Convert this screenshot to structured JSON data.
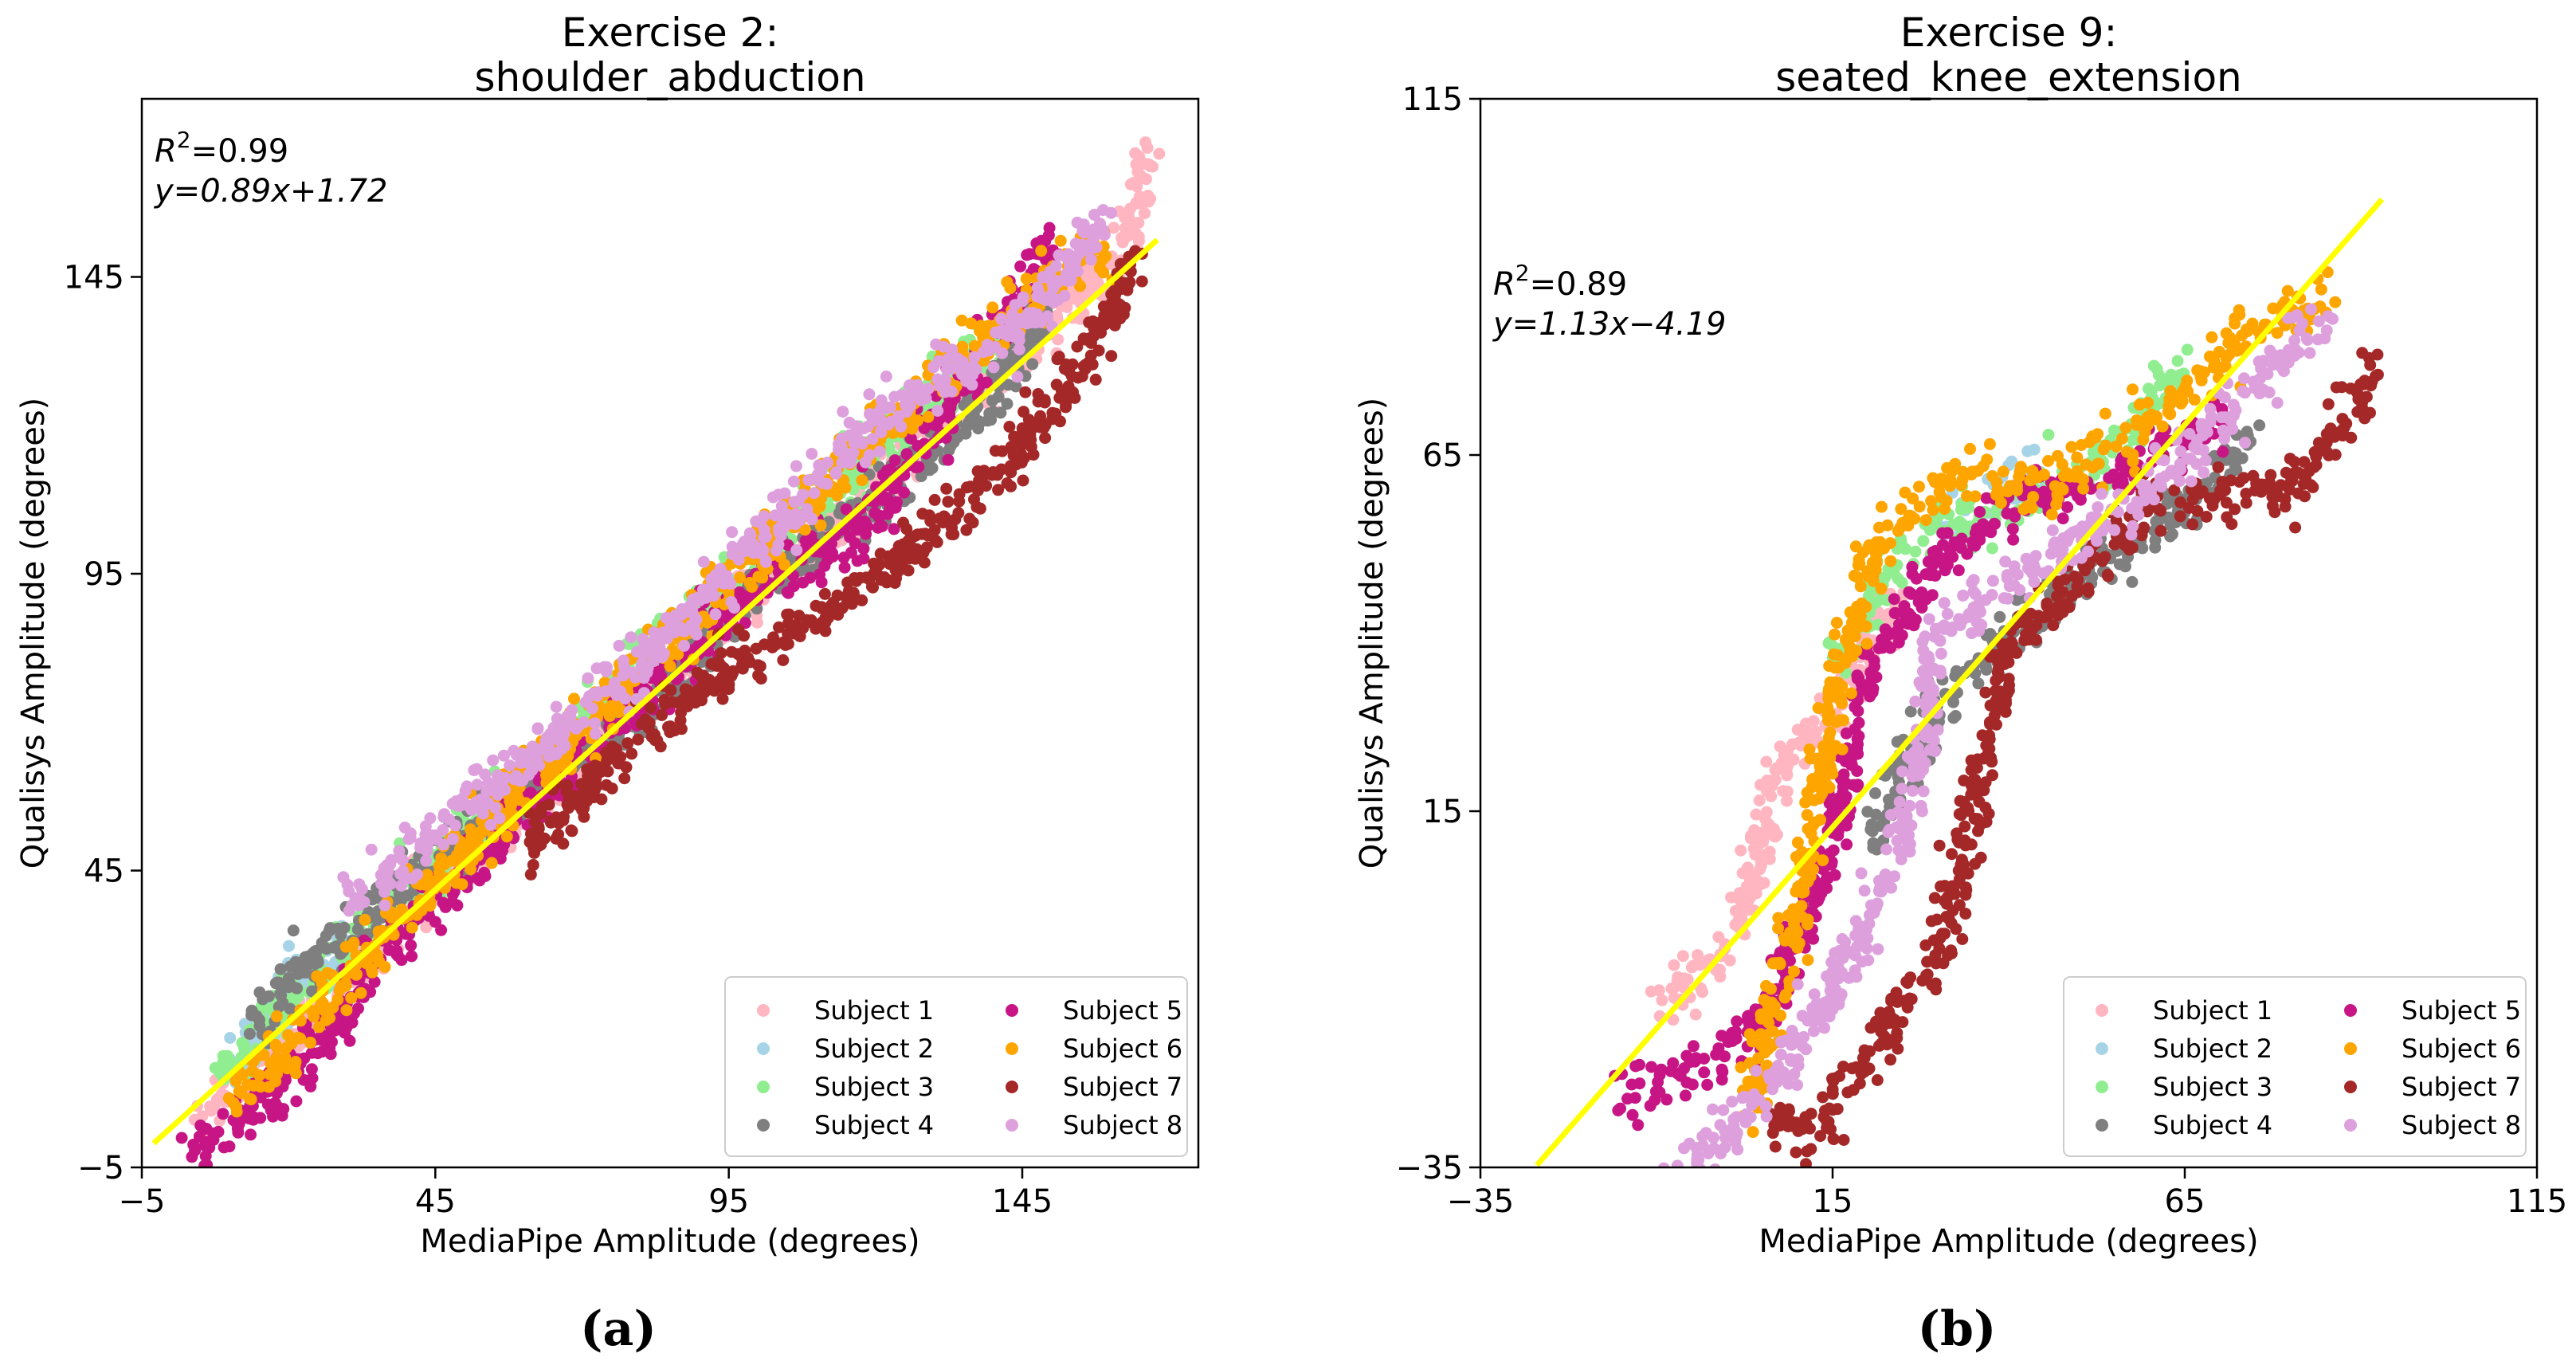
{
  "chart_data": [
    {
      "type": "scatter",
      "panel_label": "(a)",
      "title": "Exercise 2:",
      "subtitle": "shoulder_abduction",
      "xlabel": "MediaPipe Amplitude (degrees)",
      "ylabel": "Qualisys Amplitude (degrees)",
      "xlim": [
        -5,
        175
      ],
      "ylim": [
        -5,
        175
      ],
      "xticks": [
        -5,
        45,
        95,
        145
      ],
      "yticks": [
        -5,
        45,
        95,
        145
      ],
      "xtick_labels": [
        "−5",
        "45",
        "95",
        "145"
      ],
      "ytick_labels": [
        "−5",
        "45",
        "95",
        "145"
      ],
      "annotation_r2": {
        "base": "R",
        "sup": "2",
        "value": "=0.99"
      },
      "annotation_eq": "y=0.89x+1.72",
      "fit": {
        "slope": 0.89,
        "intercept": 1.72,
        "x": [
          -3,
          168
        ],
        "color": "#ffff00"
      },
      "legend_position": "lower-right",
      "series": [
        {
          "name": "Subject 1",
          "color": "#ffb6c1",
          "points": [
            [
              3,
              2
            ],
            [
              25,
              22
            ],
            [
              60,
              56
            ],
            [
              100,
              92
            ],
            [
              140,
              128
            ],
            [
              155,
              142
            ],
            [
              163,
              152
            ],
            [
              165,
              158
            ],
            [
              166,
              163
            ],
            [
              167,
              166
            ]
          ]
        },
        {
          "name": "Subject 2",
          "color": "#a6d4e6",
          "points": [
            [
              10,
              12
            ],
            [
              15,
              18
            ],
            [
              20,
              25
            ],
            [
              25,
              30
            ],
            [
              30,
              33
            ]
          ]
        },
        {
          "name": "Subject 3",
          "color": "#90ee90",
          "points": [
            [
              9,
              11
            ],
            [
              14,
              16
            ],
            [
              20,
              23
            ],
            [
              60,
              60
            ],
            [
              120,
              116
            ],
            [
              145,
              138
            ]
          ]
        },
        {
          "name": "Subject 4",
          "color": "#7f7f7f",
          "points": [
            [
              14,
              20
            ],
            [
              20,
              26
            ],
            [
              40,
              43
            ],
            [
              80,
              72
            ],
            [
              100,
              92
            ],
            [
              120,
              108
            ],
            [
              140,
              125
            ],
            [
              150,
              140
            ]
          ]
        },
        {
          "name": "Subject 5",
          "color": "#c71585",
          "points": [
            [
              3,
              -2
            ],
            [
              10,
              2
            ],
            [
              20,
              10
            ],
            [
              40,
              35
            ],
            [
              60,
              55
            ],
            [
              80,
              74
            ],
            [
              100,
              94
            ],
            [
              115,
              100
            ],
            [
              130,
              120
            ],
            [
              150,
              150
            ]
          ]
        },
        {
          "name": "Subject 6",
          "color": "#ffa500",
          "points": [
            [
              10,
              7
            ],
            [
              15,
              10
            ],
            [
              60,
              60
            ],
            [
              100,
              98
            ],
            [
              130,
              128
            ],
            [
              145,
              140
            ],
            [
              155,
              148
            ],
            [
              160,
              150
            ]
          ]
        },
        {
          "name": "Subject 7",
          "color": "#a52828",
          "points": [
            [
              60,
              48
            ],
            [
              80,
              68
            ],
            [
              90,
              75
            ],
            [
              110,
              88
            ],
            [
              125,
              98
            ],
            [
              140,
              110
            ],
            [
              155,
              130
            ],
            [
              165,
              148
            ]
          ]
        },
        {
          "name": "Subject 8",
          "color": "#dda0dd",
          "points": [
            [
              30,
              40
            ],
            [
              60,
              63
            ],
            [
              80,
              80
            ],
            [
              100,
              100
            ],
            [
              125,
              125
            ],
            [
              140,
              132
            ],
            [
              160,
              155
            ]
          ]
        }
      ]
    },
    {
      "type": "scatter",
      "panel_label": "(b)",
      "title": "Exercise 9:",
      "subtitle": "seated_knee_extension",
      "xlabel": "MediaPipe Amplitude (degrees)",
      "ylabel": "Qualisys Amplitude (degrees)",
      "xlim": [
        -35,
        115
      ],
      "ylim": [
        -35,
        115
      ],
      "xticks": [
        -35,
        15,
        65,
        115
      ],
      "yticks": [
        -35,
        15,
        65,
        115
      ],
      "xtick_labels": [
        "−35",
        "15",
        "65",
        "115"
      ],
      "ytick_labels": [
        "−35",
        "15",
        "65",
        "115"
      ],
      "annotation_r2": {
        "base": "R",
        "sup": "2",
        "value": "=0.89"
      },
      "annotation_eq": "y=1.13x−4.19",
      "fit": {
        "slope": 1.13,
        "intercept": -4.19,
        "x": [
          -27,
          93
        ],
        "color": "#ffff00"
      },
      "legend_position": "lower-right",
      "series": [
        {
          "name": "Subject 1",
          "color": "#ffb6c1",
          "points": [
            [
              -10,
              -12
            ],
            [
              -5,
              -8
            ],
            [
              0,
              -5
            ],
            [
              5,
              10
            ],
            [
              8,
              22
            ],
            [
              15,
              30
            ],
            [
              20,
              38
            ],
            [
              25,
              46
            ]
          ]
        },
        {
          "name": "Subject 2",
          "color": "#a6d4e6",
          "points": [
            [
              30,
              55
            ],
            [
              45,
              62
            ]
          ]
        },
        {
          "name": "Subject 3",
          "color": "#90ee90",
          "points": [
            [
              15,
              35
            ],
            [
              25,
              52
            ],
            [
              40,
              58
            ],
            [
              55,
              65
            ],
            [
              65,
              78
            ]
          ]
        },
        {
          "name": "Subject 4",
          "color": "#7f7f7f",
          "points": [
            [
              20,
              10
            ],
            [
              30,
              30
            ],
            [
              40,
              40
            ],
            [
              55,
              50
            ],
            [
              65,
              58
            ],
            [
              75,
              68
            ]
          ]
        },
        {
          "name": "Subject 5",
          "color": "#c71585",
          "points": [
            [
              -15,
              -25
            ],
            [
              -5,
              -22
            ],
            [
              5,
              -15
            ],
            [
              15,
              10
            ],
            [
              20,
              35
            ],
            [
              30,
              50
            ],
            [
              40,
              58
            ],
            [
              55,
              62
            ],
            [
              70,
              70
            ]
          ]
        },
        {
          "name": "Subject 6",
          "color": "#ffa500",
          "points": [
            [
              3,
              -27
            ],
            [
              10,
              0
            ],
            [
              15,
              30
            ],
            [
              20,
              50
            ],
            [
              25,
              57
            ],
            [
              35,
              62
            ],
            [
              45,
              60
            ],
            [
              60,
              70
            ],
            [
              75,
              83
            ],
            [
              85,
              88
            ]
          ]
        },
        {
          "name": "Subject 7",
          "color": "#a52828",
          "points": [
            [
              5,
              -28
            ],
            [
              12,
              -30
            ],
            [
              20,
              -20
            ],
            [
              30,
              -5
            ],
            [
              35,
              15
            ],
            [
              40,
              38
            ],
            [
              50,
              48
            ],
            [
              60,
              58
            ],
            [
              80,
              60
            ],
            [
              88,
              70
            ],
            [
              92,
              77
            ]
          ]
        },
        {
          "name": "Subject 8",
          "color": "#dda0dd",
          "points": [
            [
              -10,
              -40
            ],
            [
              5,
              -25
            ],
            [
              15,
              -10
            ],
            [
              25,
              10
            ],
            [
              30,
              40
            ],
            [
              45,
              50
            ],
            [
              60,
              60
            ],
            [
              70,
              70
            ],
            [
              85,
              85
            ]
          ]
        }
      ]
    }
  ]
}
